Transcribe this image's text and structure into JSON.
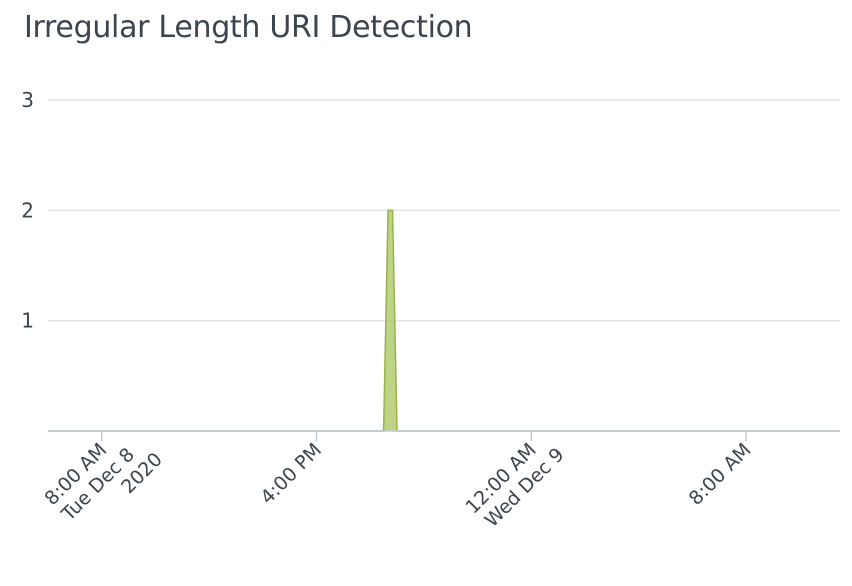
{
  "panel": {
    "title": "Irregular Length URI Detection"
  },
  "chart_data": {
    "type": "area",
    "title": "Irregular Length URI Detection",
    "xlabel": "",
    "ylabel": "",
    "x_range": [
      "2020-12-08T06:00",
      "2020-12-09T11:30"
    ],
    "ylim": [
      0,
      3
    ],
    "y_ticks": [
      1,
      2,
      3
    ],
    "grid": true,
    "legend": "none",
    "x_ticks": [
      {
        "x": "2020-12-08T08:00",
        "lines": [
          "8:00 AM",
          "Tue Dec 8",
          "2020"
        ]
      },
      {
        "x": "2020-12-08T16:00",
        "lines": [
          "4:00 PM"
        ]
      },
      {
        "x": "2020-12-09T00:00",
        "lines": [
          "12:00 AM",
          "Wed Dec 9"
        ]
      },
      {
        "x": "2020-12-09T08:00",
        "lines": [
          "8:00 AM"
        ]
      }
    ],
    "series": [
      {
        "color": "#b3cb6f",
        "stroke": "#98b34e",
        "points": [
          {
            "x": "2020-12-08T06:00",
            "y": 0
          },
          {
            "x": "2020-12-08T18:30",
            "y": 0
          },
          {
            "x": "2020-12-08T18:40",
            "y": 2
          },
          {
            "x": "2020-12-08T18:50",
            "y": 2
          },
          {
            "x": "2020-12-08T19:00",
            "y": 0
          },
          {
            "x": "2020-12-09T11:30",
            "y": 0
          }
        ]
      }
    ]
  }
}
